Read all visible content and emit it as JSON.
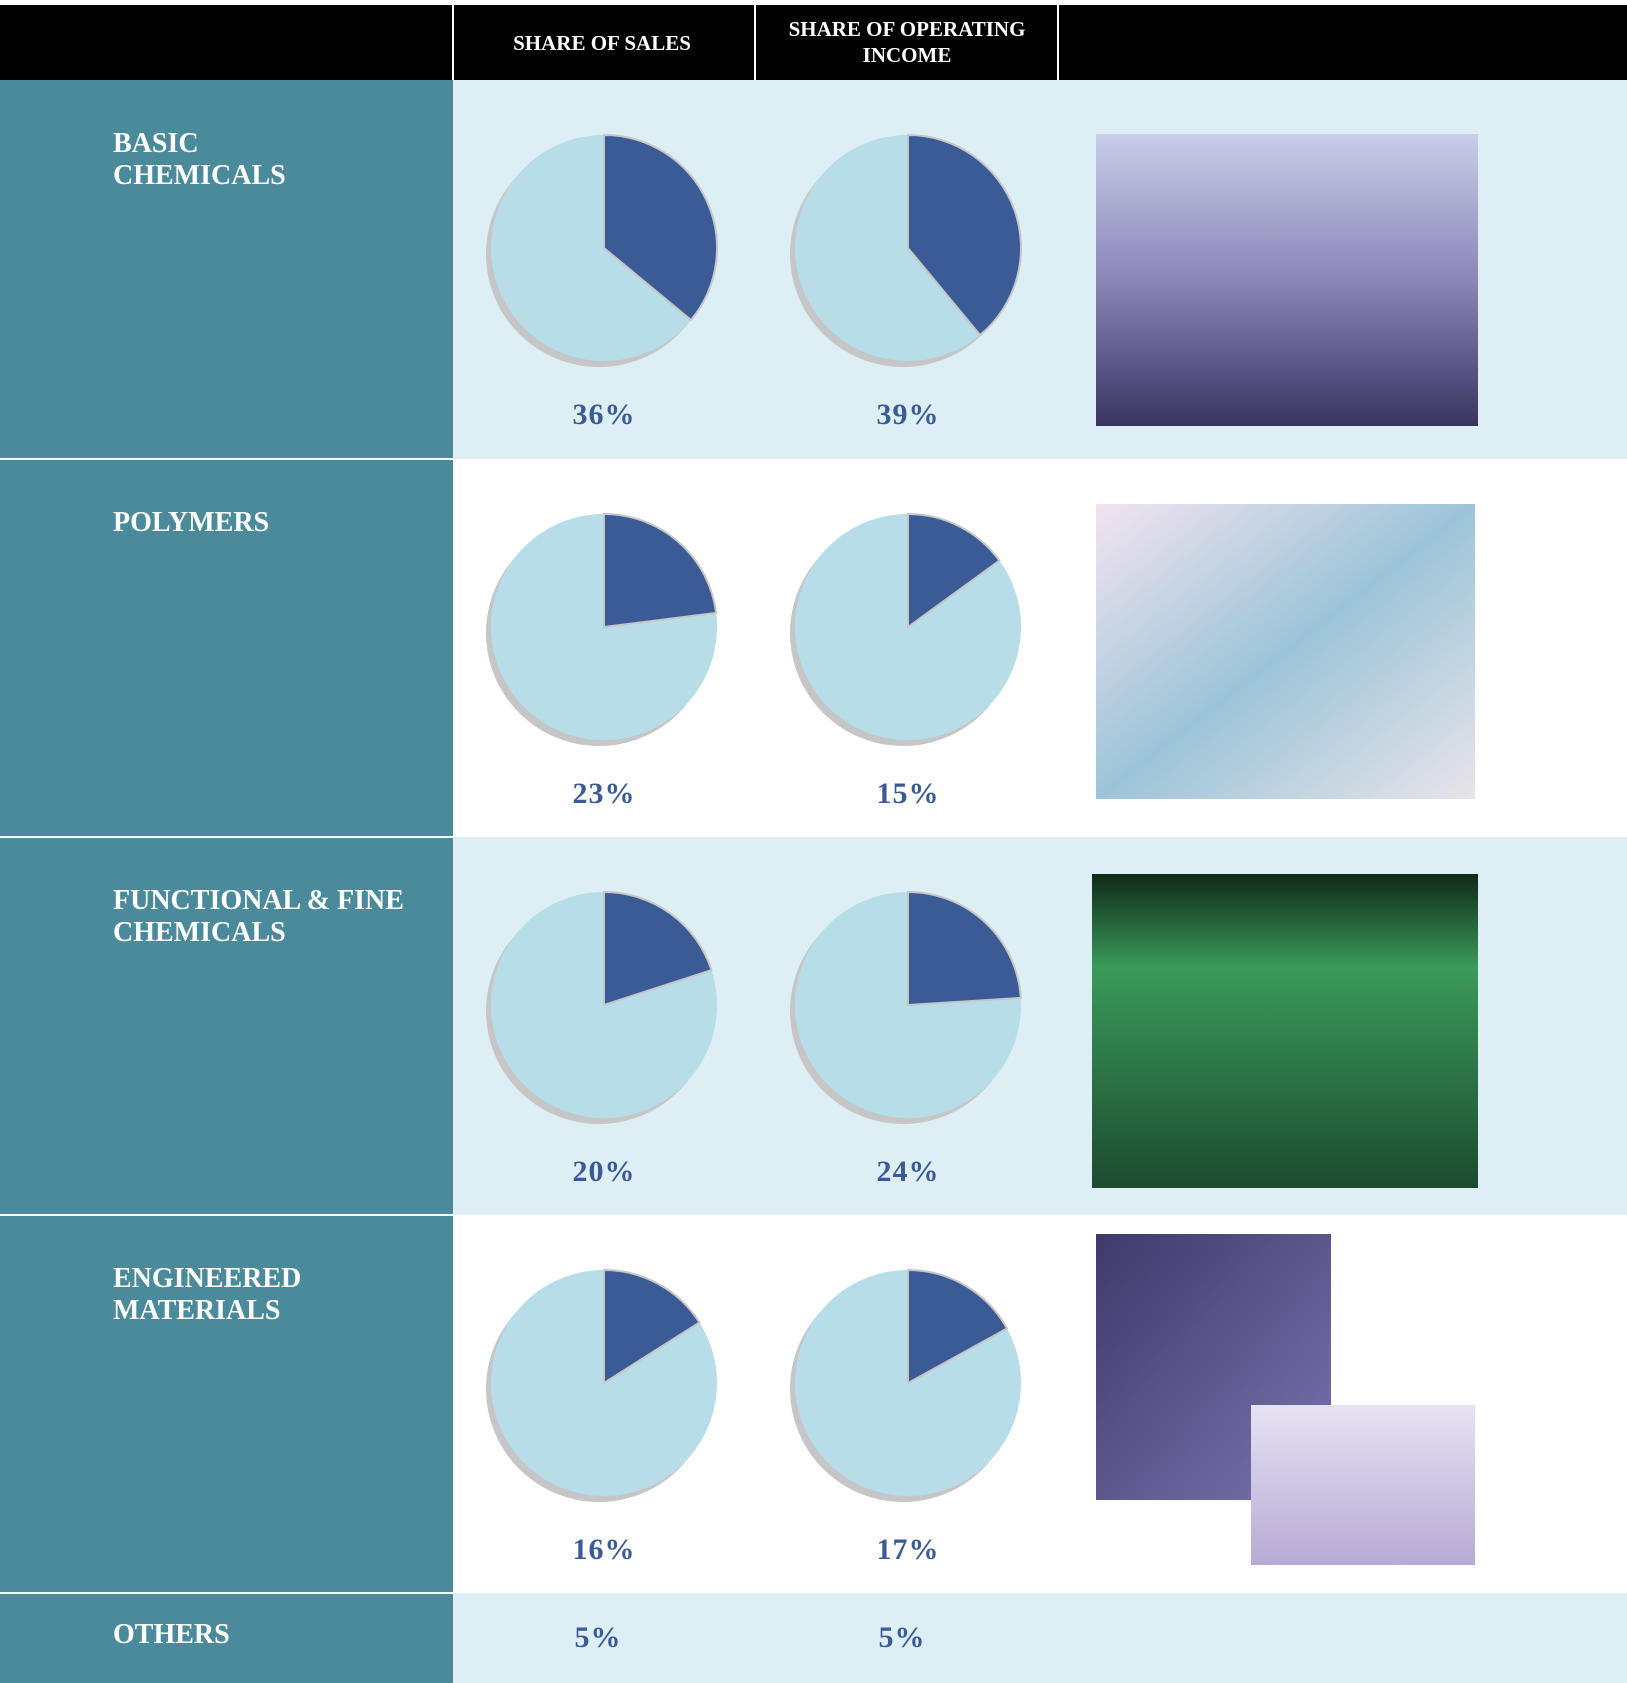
{
  "header": {
    "sales": "SHARE OF SALES",
    "income": "SHARE OF OPERATING INCOME"
  },
  "rows": [
    {
      "name_lines": [
        "BASIC",
        "CHEMICALS"
      ],
      "sales": {
        "value": 36,
        "label": "36%"
      },
      "income": {
        "value": 39,
        "label": "39%"
      }
    },
    {
      "name_lines": [
        "POLYMERS"
      ],
      "sales": {
        "value": 23,
        "label": "23%"
      },
      "income": {
        "value": 15,
        "label": "15%"
      }
    },
    {
      "name_lines": [
        "FUNCTIONAL & FINE",
        "CHEMICALS"
      ],
      "sales": {
        "value": 20,
        "label": "20%"
      },
      "income": {
        "value": 24,
        "label": "24%"
      }
    },
    {
      "name_lines": [
        "ENGINEERED",
        "MATERIALS"
      ],
      "sales": {
        "value": 16,
        "label": "16%"
      },
      "income": {
        "value": 17,
        "label": "17%"
      }
    },
    {
      "name_lines": [
        "OTHERS"
      ],
      "sales": {
        "value": 5,
        "label": "5%"
      },
      "income": {
        "value": 5,
        "label": "5%"
      }
    }
  ]
}
